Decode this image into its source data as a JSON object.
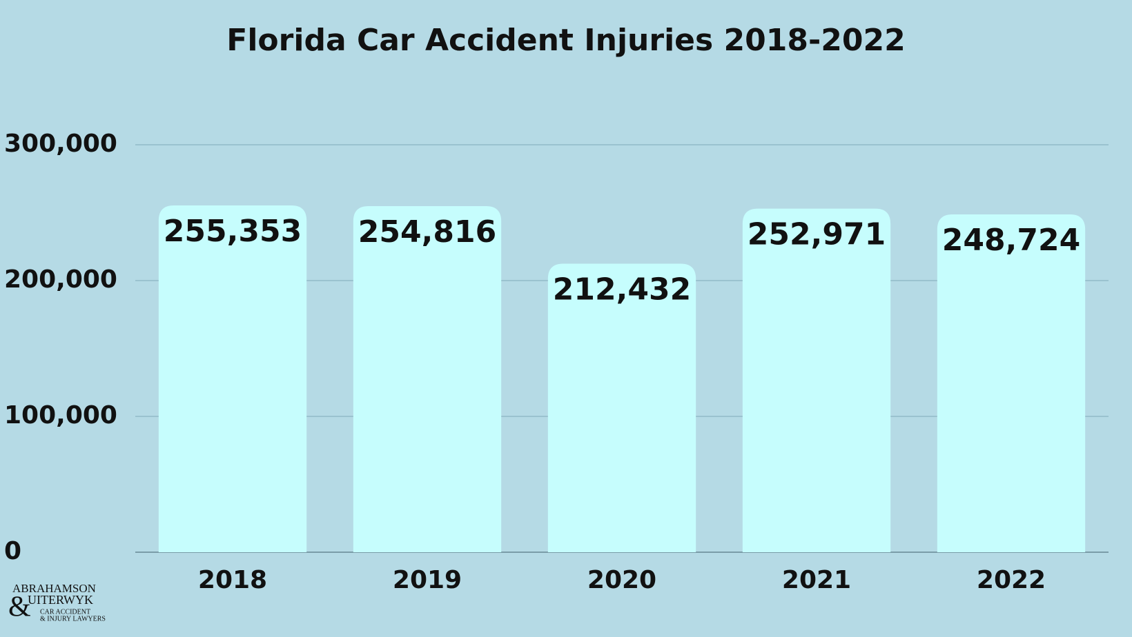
{
  "chart_data": {
    "type": "bar",
    "title": "Florida Car Accident Injuries 2018-2022",
    "categories": [
      "2018",
      "2019",
      "2020",
      "2021",
      "2022"
    ],
    "values": [
      255353,
      254816,
      212432,
      252971,
      248724
    ],
    "value_labels": [
      "255,353",
      "254,816",
      "212,432",
      "252,971",
      "248,724"
    ],
    "color": "#c6fdfd",
    "ylim": [
      0,
      300000
    ],
    "yticks": [
      0,
      {
        "value": 100000,
        "label": "100,000"
      },
      {
        "value": 200000,
        "label": "200,000"
      },
      {
        "value": 300000,
        "label": "300,000"
      }
    ],
    "grid": true
  },
  "logo": {
    "lines": [
      "ABRAHAMSON",
      "&",
      "UITERWYK",
      "CAR ACCIDENT",
      "& INJURY LAWYERS"
    ]
  }
}
